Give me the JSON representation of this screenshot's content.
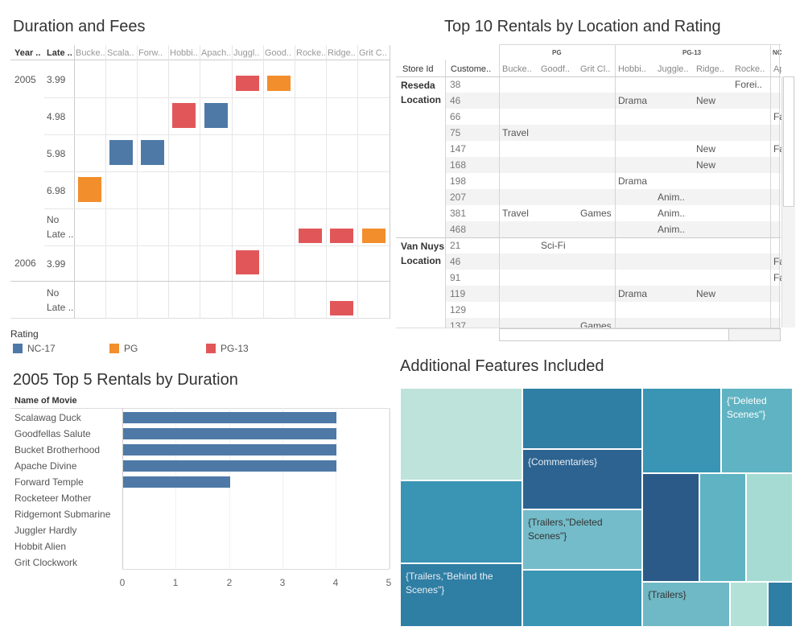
{
  "colors": {
    "nc17": "#4e79a7",
    "pg": "#f28e2b",
    "pg13": "#e15759"
  },
  "duration_fees": {
    "title": "Duration and Fees",
    "col_year": "Year ..",
    "col_late": "Late ..",
    "movies": [
      "Bucke..",
      "Scala..",
      "Forw..",
      "Hobbi..",
      "Apach..",
      "Juggl..",
      "Good..",
      "Rocke..",
      "Ridge..",
      "Grit C.."
    ],
    "years": [
      "2005",
      "2006"
    ],
    "fees": [
      "3.99",
      "4.98",
      "5.98",
      "6.98",
      "No",
      "Late ..",
      "3.99",
      "No",
      "Late .."
    ],
    "marks": [
      {
        "row": 0,
        "movie": 5,
        "rating": "pg13"
      },
      {
        "row": 0,
        "movie": 6,
        "rating": "pg"
      },
      {
        "row": 1,
        "movie": 3,
        "rating": "pg13"
      },
      {
        "row": 1,
        "movie": 4,
        "rating": "nc17"
      },
      {
        "row": 2,
        "movie": 1,
        "rating": "nc17"
      },
      {
        "row": 2,
        "movie": 2,
        "rating": "nc17"
      },
      {
        "row": 3,
        "movie": 0,
        "rating": "pg"
      },
      {
        "row": 4,
        "movie": 7,
        "rating": "pg13"
      },
      {
        "row": 4,
        "movie": 8,
        "rating": "pg13"
      },
      {
        "row": 4,
        "movie": 9,
        "rating": "pg"
      },
      {
        "row": 5,
        "movie": 5,
        "rating": "pg13"
      },
      {
        "row": 6,
        "movie": 8,
        "rating": "pg13"
      }
    ]
  },
  "legend": {
    "title": "Rating",
    "items": [
      "NC-17",
      "PG",
      "PG-13"
    ]
  },
  "top5": {
    "title": "2005 Top 5 Rentals by Duration",
    "header": "Name of Movie",
    "movies": [
      "Scalawag Duck",
      "Goodfellas Salute",
      "Bucket Brotherhood",
      "Apache Divine",
      "Forward Temple",
      "Rocketeer Mother",
      "Ridgemont Submarine",
      "Juggler Hardly",
      "Hobbit Alien",
      "Grit Clockwork"
    ],
    "ticks": [
      "0",
      "1",
      "2",
      "3",
      "4",
      "5"
    ]
  },
  "chart_data": {
    "type": "bar",
    "title": "2005 Top 5 Rentals by Duration",
    "categories": [
      "Scalawag Duck",
      "Goodfellas Salute",
      "Bucket Brotherhood",
      "Apache Divine",
      "Forward Temple",
      "Rocketeer Mother",
      "Ridgemont Submarine",
      "Juggler Hardly",
      "Hobbit Alien",
      "Grit Clockwork"
    ],
    "values": [
      4,
      4,
      4,
      4,
      2,
      0,
      0,
      0,
      0,
      0
    ],
    "xlim": [
      0,
      5
    ],
    "ylabel": "Name of Movie"
  },
  "top10": {
    "title": "Top 10 Rentals by Location and Rating",
    "groups": [
      "PG",
      "PG-13",
      "NC"
    ],
    "col_store": "Store Id",
    "col_customer": "Custome..",
    "cols": [
      "Bucke..",
      "Goodf..",
      "Grit Cl..",
      "Hobbi..",
      "Juggle..",
      "Ridge..",
      "Rocke..",
      "Ap"
    ],
    "locations": [
      {
        "name1": "Reseda",
        "name2": "Location"
      },
      {
        "name1": "Van Nuys",
        "name2": "Location"
      }
    ],
    "rows": [
      {
        "id": "38",
        "cells": {
          "6": "Forei.."
        }
      },
      {
        "id": "46",
        "cells": {
          "3": "Drama",
          "5": "New"
        }
      },
      {
        "id": "66",
        "cells": {
          "7": "Fa"
        }
      },
      {
        "id": "75",
        "cells": {
          "0": "Travel"
        }
      },
      {
        "id": "147",
        "cells": {
          "5": "New",
          "7": "Fa"
        }
      },
      {
        "id": "168",
        "cells": {
          "5": "New"
        }
      },
      {
        "id": "198",
        "cells": {
          "3": "Drama"
        }
      },
      {
        "id": "207",
        "cells": {
          "4": "Anim.."
        }
      },
      {
        "id": "381",
        "cells": {
          "0": "Travel",
          "2": "Games",
          "4": "Anim.."
        }
      },
      {
        "id": "468",
        "cells": {
          "4": "Anim.."
        }
      },
      {
        "id": "21",
        "cells": {
          "1": "Sci-Fi"
        }
      },
      {
        "id": "46",
        "cells": {
          "7": "Fa"
        }
      },
      {
        "id": "91",
        "cells": {
          "7": "Fa"
        }
      },
      {
        "id": "119",
        "cells": {
          "3": "Drama",
          "5": "New"
        }
      },
      {
        "id": "129",
        "cells": {}
      },
      {
        "id": "137",
        "cells": {
          "2": "Games"
        }
      }
    ]
  },
  "features": {
    "title": "Additional Features Included",
    "labels": {
      "deleted": "{\"Deleted Scenes\"}",
      "commentaries": "{Commentaries}",
      "trailers_deleted": "{Trailers,\"Deleted Scenes\"}",
      "trailers_behind": "{Trailers,\"Behind the Scenes\"}",
      "trailers": "{Trailers}"
    }
  }
}
